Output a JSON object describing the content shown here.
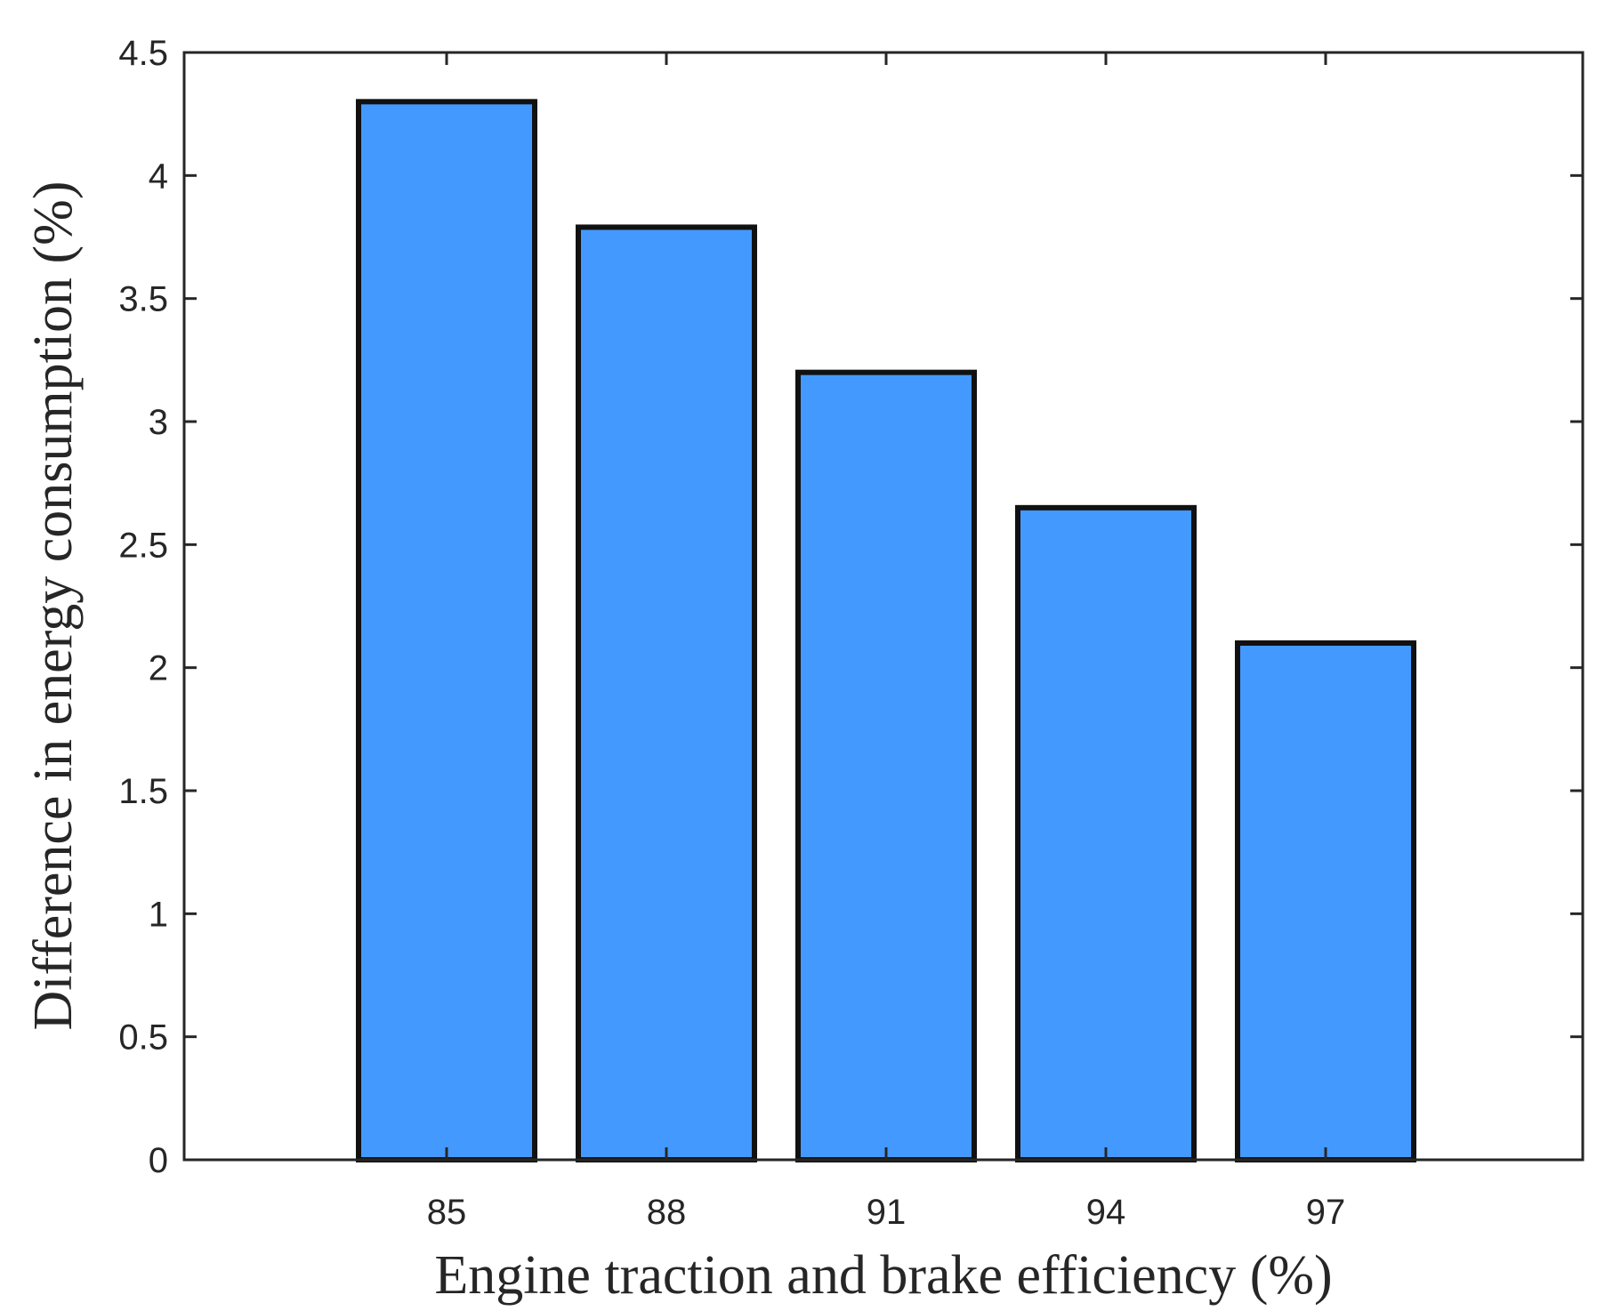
{
  "chart_data": {
    "type": "bar",
    "title": "",
    "xlabel": "Engine traction and brake efficiency (%)",
    "ylabel": "Difference in energy consumption (%)",
    "categories": [
      "85",
      "88",
      "91",
      "94",
      "97"
    ],
    "values": [
      4.3,
      3.79,
      3.2,
      2.65,
      2.1
    ],
    "ylim": [
      0,
      4.5
    ],
    "yticks": [
      "0",
      "0.5",
      "1",
      "1.5",
      "2",
      "2.5",
      "3",
      "3.5",
      "4",
      "4.5"
    ],
    "grid": false,
    "legend": "none",
    "bar_color": "#4499ff",
    "bar_edge_color": "#111111",
    "axis_color": "#262626"
  }
}
